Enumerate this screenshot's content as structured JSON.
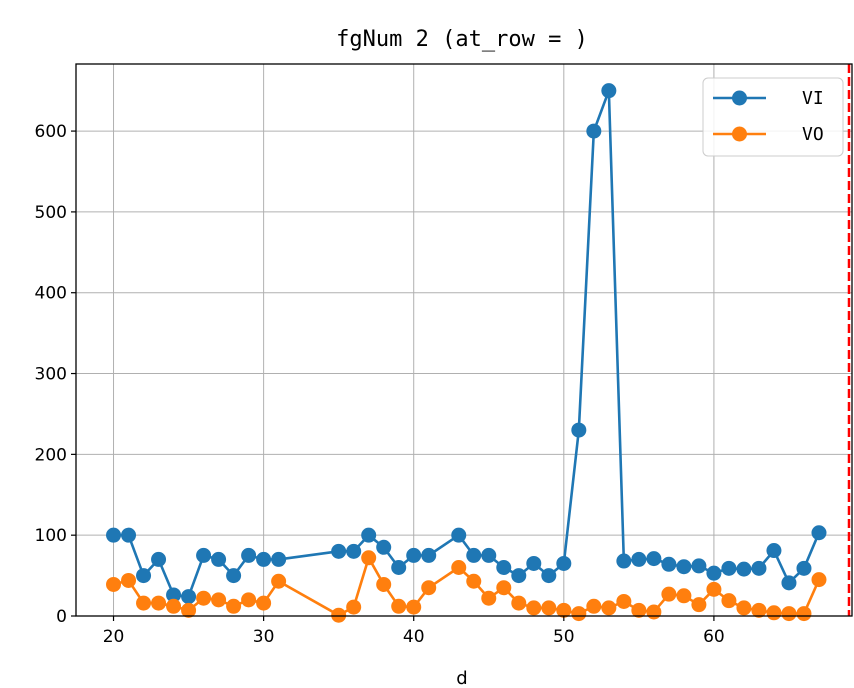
{
  "chart_data": {
    "type": "line",
    "title": "fgNum 2 (at_row = )",
    "xlabel": "d",
    "ylabel": "",
    "xlim": [
      17.5,
      69.2
    ],
    "ylim": [
      0,
      683
    ],
    "xticks": [
      20,
      30,
      40,
      50,
      60
    ],
    "yticks": [
      0,
      100,
      200,
      300,
      400,
      500,
      600
    ],
    "grid": true,
    "legend_position": "top-right",
    "vline": {
      "x": 69,
      "color": "#ff0000",
      "style": "dashed"
    },
    "series": [
      {
        "name": "VI",
        "color": "#1f77b4",
        "points": [
          [
            20,
            100
          ],
          [
            21,
            100
          ],
          [
            22,
            50
          ],
          [
            23,
            70
          ],
          [
            24,
            26
          ],
          [
            25,
            24
          ],
          [
            26,
            75
          ],
          [
            27,
            70
          ],
          [
            28,
            50
          ],
          [
            29,
            75
          ],
          [
            30,
            70
          ],
          [
            31,
            70
          ],
          [
            35,
            80
          ],
          [
            36,
            80
          ],
          [
            37,
            100
          ],
          [
            38,
            85
          ],
          [
            39,
            60
          ],
          [
            40,
            75
          ],
          [
            41,
            75
          ],
          [
            43,
            100
          ],
          [
            44,
            75
          ],
          [
            45,
            75
          ],
          [
            46,
            60
          ],
          [
            47,
            50
          ],
          [
            48,
            65
          ],
          [
            49,
            50
          ],
          [
            50,
            65
          ],
          [
            51,
            230
          ],
          [
            52,
            600
          ],
          [
            53,
            650
          ],
          [
            54,
            68
          ],
          [
            55,
            70
          ],
          [
            56,
            71
          ],
          [
            57,
            64
          ],
          [
            58,
            61
          ],
          [
            59,
            62
          ],
          [
            60,
            53
          ],
          [
            61,
            59
          ],
          [
            62,
            58
          ],
          [
            63,
            59
          ],
          [
            64,
            81
          ],
          [
            65,
            41
          ],
          [
            66,
            59
          ],
          [
            67,
            103
          ]
        ]
      },
      {
        "name": "VO",
        "color": "#ff7f0e",
        "points": [
          [
            20,
            39
          ],
          [
            21,
            44
          ],
          [
            22,
            16
          ],
          [
            23,
            16
          ],
          [
            24,
            12
          ],
          [
            25,
            7
          ],
          [
            26,
            22
          ],
          [
            27,
            20
          ],
          [
            28,
            12
          ],
          [
            29,
            20
          ],
          [
            30,
            16
          ],
          [
            31,
            43
          ],
          [
            35,
            1
          ],
          [
            36,
            11
          ],
          [
            37,
            72
          ],
          [
            38,
            39
          ],
          [
            39,
            12
          ],
          [
            40,
            11
          ],
          [
            41,
            35
          ],
          [
            43,
            60
          ],
          [
            44,
            43
          ],
          [
            45,
            22
          ],
          [
            46,
            35
          ],
          [
            47,
            16
          ],
          [
            48,
            10
          ],
          [
            49,
            10
          ],
          [
            50,
            7
          ],
          [
            51,
            3
          ],
          [
            52,
            12
          ],
          [
            53,
            10
          ],
          [
            54,
            18
          ],
          [
            55,
            7
          ],
          [
            56,
            5
          ],
          [
            57,
            27
          ],
          [
            58,
            25
          ],
          [
            59,
            14
          ],
          [
            60,
            33
          ],
          [
            61,
            19
          ],
          [
            62,
            10
          ],
          [
            63,
            7
          ],
          [
            64,
            4
          ],
          [
            65,
            3
          ],
          [
            66,
            3
          ],
          [
            67,
            45
          ]
        ]
      }
    ]
  }
}
